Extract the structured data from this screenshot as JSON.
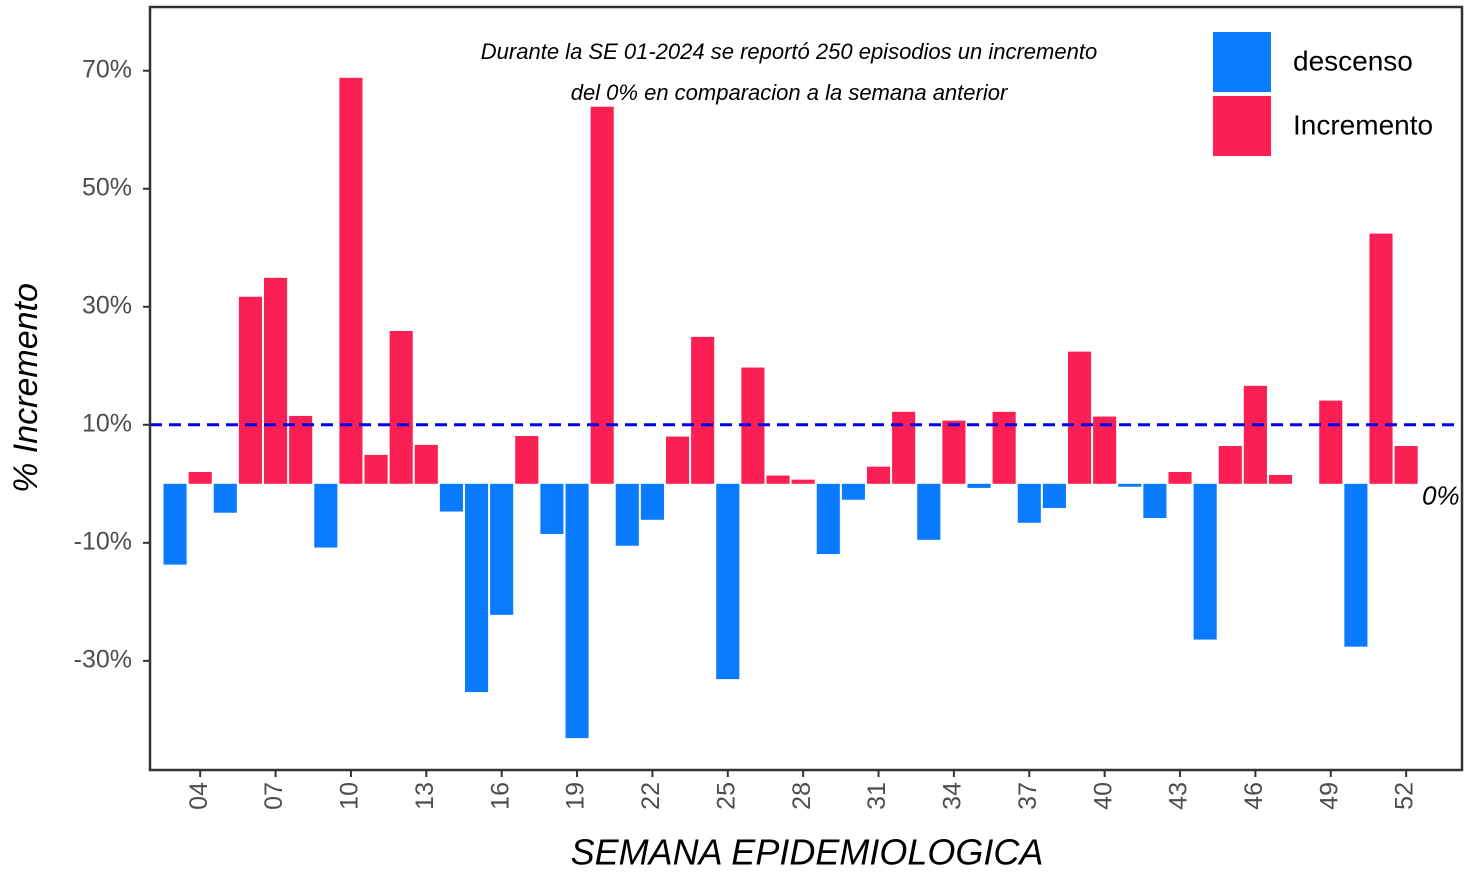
{
  "chart_data": {
    "type": "bar",
    "categories": [
      null,
      "04",
      null,
      null,
      "07",
      null,
      null,
      "10",
      null,
      null,
      "13",
      null,
      null,
      "16",
      null,
      null,
      "19",
      null,
      null,
      "22",
      null,
      null,
      "25",
      null,
      null,
      "28",
      null,
      null,
      "31",
      null,
      null,
      "34",
      null,
      null,
      "37",
      null,
      null,
      "40",
      null,
      null,
      "43",
      null,
      null,
      "46",
      null,
      null,
      "49",
      null,
      null,
      "52"
    ],
    "series": [
      {
        "name": "descenso",
        "color": "#0a7bff",
        "values": [
          -13.7,
          null,
          -4.9,
          null,
          null,
          null,
          -10.8,
          null,
          null,
          null,
          null,
          -4.7,
          -35.3,
          -22.2,
          null,
          -8.5,
          -43.1,
          null,
          -10.5,
          -6.1,
          null,
          null,
          -33.1,
          null,
          null,
          null,
          -11.9,
          -2.7,
          null,
          null,
          -9.5,
          null,
          -0.7,
          null,
          -6.6,
          -4.1,
          null,
          null,
          -0.5,
          -5.8,
          null,
          -26.4,
          null,
          null,
          null,
          null,
          null,
          -27.6,
          null,
          null
        ]
      },
      {
        "name": "Incremento",
        "color": "#fc1f53",
        "values": [
          null,
          2.0,
          null,
          31.7,
          34.9,
          11.5,
          null,
          68.8,
          4.9,
          25.9,
          6.6,
          null,
          null,
          null,
          8.1,
          null,
          null,
          63.9,
          null,
          null,
          8.0,
          24.9,
          null,
          19.7,
          1.4,
          0.7,
          null,
          null,
          2.9,
          12.2,
          null,
          10.7,
          null,
          12.2,
          null,
          null,
          22.4,
          11.4,
          null,
          null,
          2.0,
          null,
          6.4,
          16.6,
          1.5,
          0,
          14.1,
          null,
          42.4,
          6.4
        ]
      }
    ],
    "ylim": [
      -48.5,
      80.8
    ],
    "yticks": [
      {
        "value": -30,
        "label": "-30%"
      },
      {
        "value": -10,
        "label": "-10%"
      },
      {
        "value": 10,
        "label": "10%"
      },
      {
        "value": 30,
        "label": "30%"
      },
      {
        "value": 50,
        "label": "50%"
      },
      {
        "value": 70,
        "label": "70%"
      }
    ],
    "xlabel": "SEMANA EPIDEMIOLOGICA",
    "ylabel": "% Incremento",
    "hline": {
      "value": 10,
      "color": "#0000ee"
    },
    "hline_label": "0%",
    "annotation": [
      "Durante la SE 01-2024 se reportó 250 episodios un incremento",
      "del 0% en comparacion a la semana anterior"
    ],
    "legend": "top-right",
    "grid": false
  }
}
